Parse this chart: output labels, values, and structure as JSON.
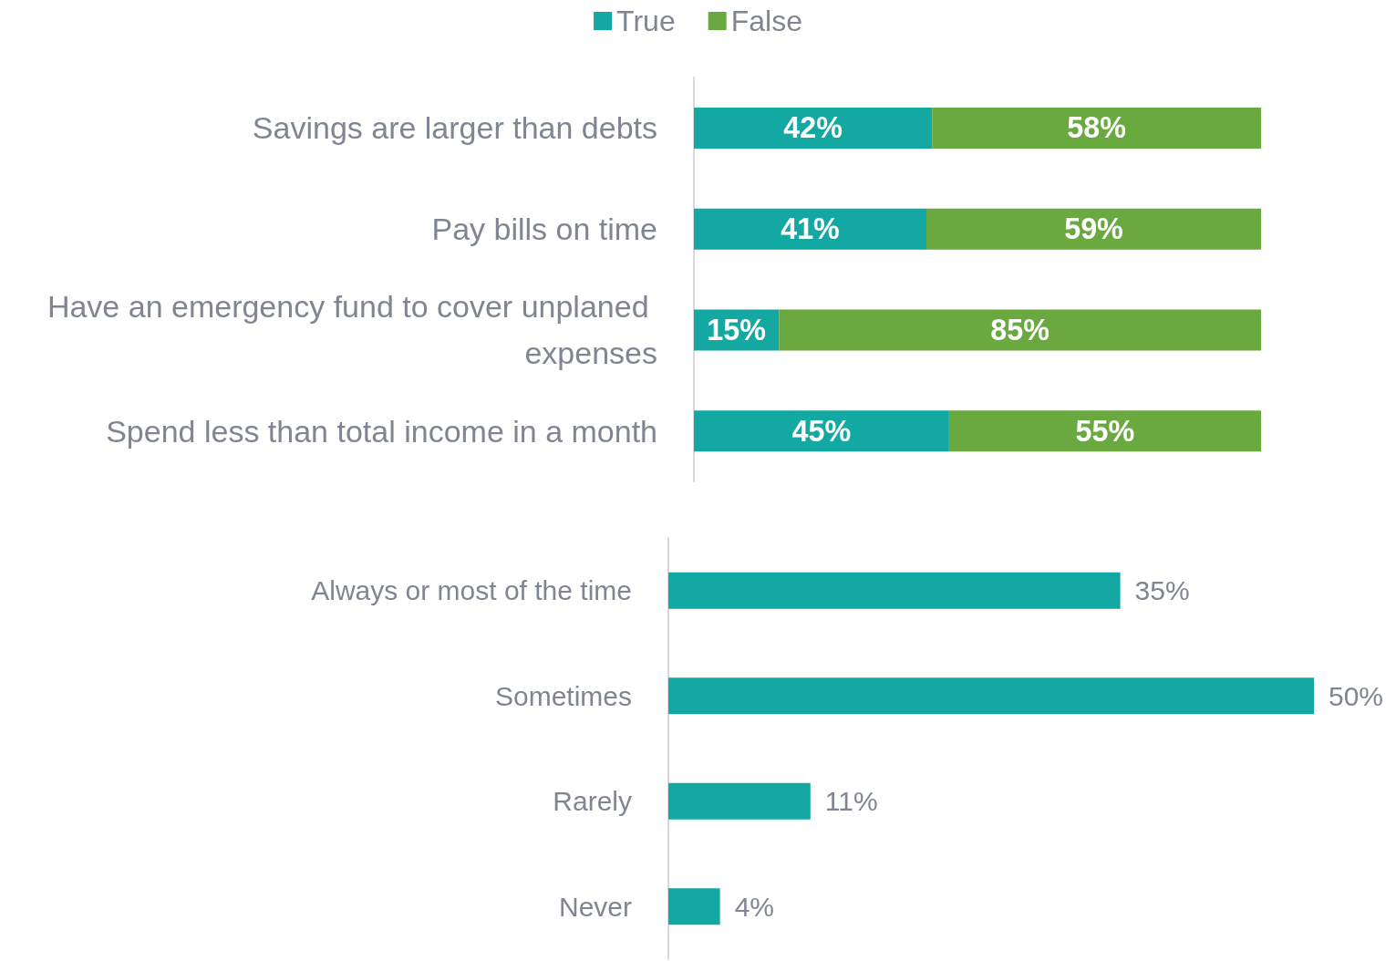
{
  "chart_data": [
    {
      "type": "bar",
      "orientation": "horizontal",
      "stacked": true,
      "categories": [
        "Savings are larger than debts",
        "Pay bills on time",
        "Have an emergency fund to cover unplaned expenses",
        "Spend less than total income in a month"
      ],
      "series": [
        {
          "name": "True",
          "color": "#14a8a3",
          "values": [
            42,
            41,
            15,
            45
          ],
          "value_labels": [
            "42%",
            "41%",
            "15%",
            "45%"
          ]
        },
        {
          "name": "False",
          "color": "#6aa840",
          "values": [
            58,
            59,
            85,
            55
          ],
          "value_labels": [
            "58%",
            "59%",
            "85%",
            "55%"
          ]
        }
      ],
      "legend": "top",
      "tick_labels": "y",
      "grid": false
    },
    {
      "type": "bar",
      "orientation": "horizontal",
      "categories": [
        "Always or most of the time",
        "Sometimes",
        "Rarely",
        "Never"
      ],
      "series": [
        {
          "color": "#14a8a3",
          "values": [
            35,
            50,
            11,
            4
          ],
          "value_labels": [
            "35%",
            "50%",
            "11%",
            "4%"
          ]
        }
      ],
      "tick_labels": "y",
      "grid": false
    }
  ]
}
